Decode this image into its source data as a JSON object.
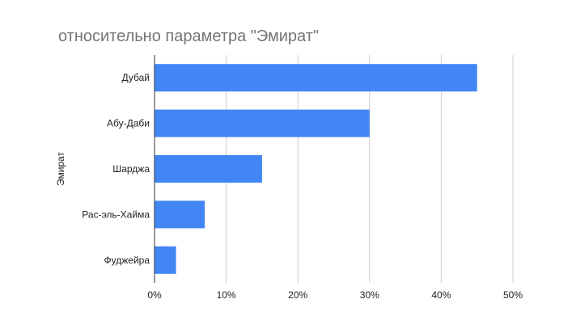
{
  "chart_data": {
    "type": "bar",
    "orientation": "horizontal",
    "title": "относительно параметра \"Эмират\"",
    "xlabel": "",
    "ylabel": "Эмират",
    "categories": [
      "Дубай",
      "Абу-Даби",
      "Шарджа",
      "Рас-эль-Хайма",
      "Фуджейра"
    ],
    "series": [
      {
        "values": [
          45,
          30,
          15,
          7,
          3
        ]
      }
    ],
    "xlim": [
      0,
      50
    ],
    "xticks": [
      "0%",
      "10%",
      "20%",
      "30%",
      "40%",
      "50%"
    ],
    "tick_values": [
      0,
      10,
      20,
      30,
      40,
      50
    ],
    "bar_color": "#4285f4",
    "grid": true,
    "legend": "none"
  }
}
